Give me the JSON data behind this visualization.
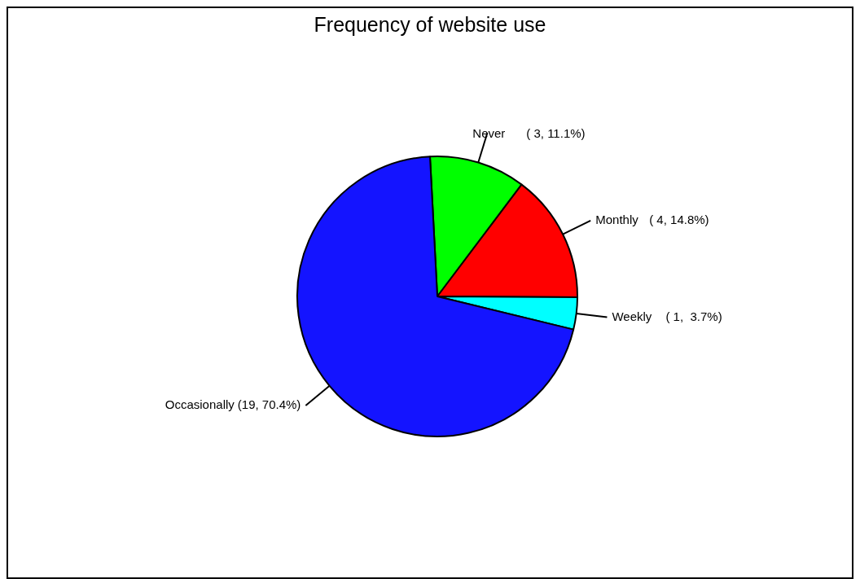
{
  "chart_data": {
    "type": "pie",
    "title": "Frequency of website use",
    "categories": [
      "Never",
      "Monthly",
      "Weekly",
      "Occasionally"
    ],
    "values": [
      3,
      4,
      1,
      19
    ],
    "colors": [
      "#00ff00",
      "#ff0000",
      "#00ffff",
      "#1414ff"
    ],
    "value_labels": [
      "( 3, 11.1%)",
      "( 4, 14.8%)",
      "( 1,  3.7%)",
      "(19, 70.4%)"
    ],
    "legend": false
  }
}
